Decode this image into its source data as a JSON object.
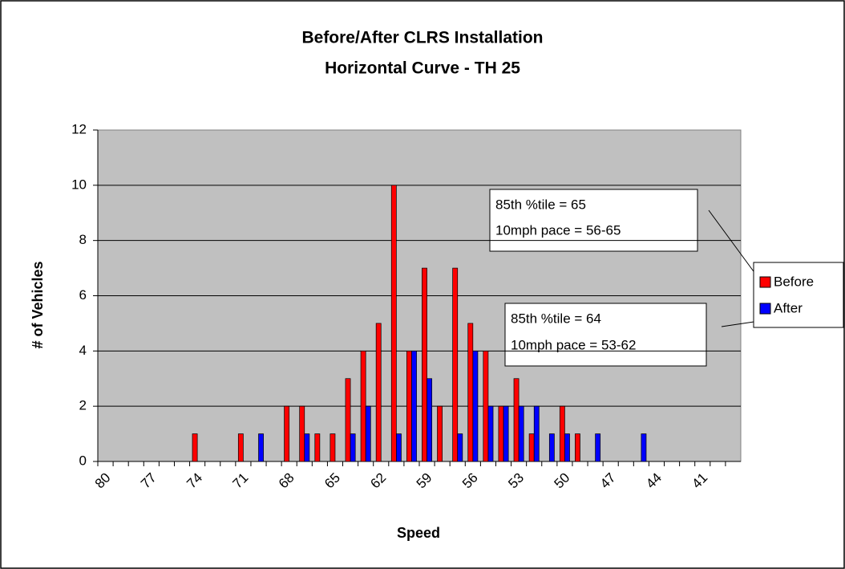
{
  "chart_data": {
    "type": "bar",
    "title": [
      "Before/After CLRS Installation",
      "Horizontal Curve - TH 25"
    ],
    "xlabel": "Speed",
    "ylabel": "# of Vehicles",
    "categories": [
      "80",
      null,
      null,
      "77",
      null,
      null,
      "74",
      null,
      null,
      "71",
      null,
      null,
      "68",
      null,
      null,
      "65",
      null,
      null,
      "62",
      null,
      null,
      "59",
      null,
      null,
      "56",
      null,
      null,
      "53",
      null,
      null,
      "50",
      null,
      null,
      "47",
      null,
      null,
      "44",
      null,
      null,
      "41",
      null,
      null
    ],
    "series": [
      {
        "name": "Before",
        "color": "#ff0000",
        "values": [
          0,
          0,
          0,
          0,
          0,
          0,
          1,
          0,
          0,
          1,
          0,
          0,
          2,
          2,
          1,
          1,
          3,
          4,
          5,
          10,
          4,
          7,
          2,
          7,
          5,
          4,
          2,
          3,
          1,
          0,
          2,
          1,
          0,
          0,
          0,
          0,
          0,
          0,
          0,
          0,
          0,
          0
        ]
      },
      {
        "name": "After",
        "color": "#0000ff",
        "values": [
          0,
          0,
          0,
          0,
          0,
          0,
          0,
          0,
          0,
          0,
          1,
          0,
          0,
          1,
          0,
          0,
          1,
          2,
          0,
          1,
          4,
          3,
          0,
          1,
          4,
          2,
          2,
          2,
          2,
          1,
          1,
          0,
          1,
          0,
          0,
          1,
          0,
          0,
          0,
          0,
          0,
          0
        ]
      }
    ],
    "ylim": [
      0,
      12
    ],
    "yticks": [
      0,
      2,
      4,
      6,
      8,
      10,
      12
    ],
    "grid": true,
    "legend": "right",
    "annotations": [
      [
        "85th %tile = 65",
        "10mph pace = 56-65"
      ],
      [
        "85th %tile = 64",
        "10mph pace = 53-62"
      ]
    ]
  }
}
